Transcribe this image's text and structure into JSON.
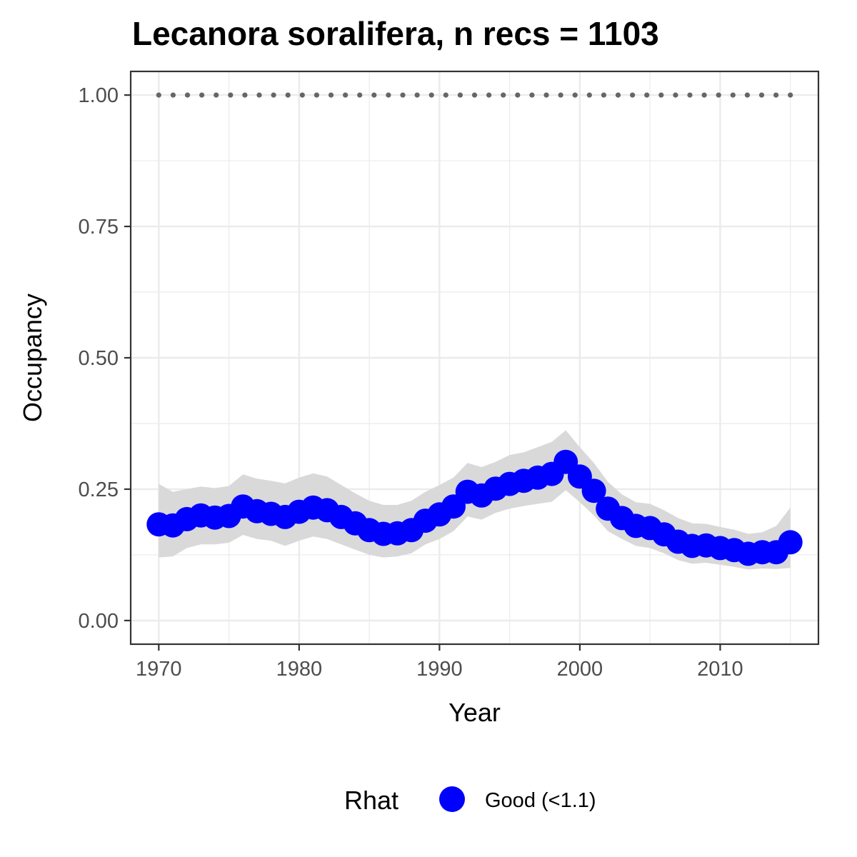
{
  "chart_data": {
    "type": "line",
    "title": "Lecanora soralifera, n recs = 1103",
    "xlabel": "Year",
    "ylabel": "Occupancy",
    "xlim": [
      1968,
      2017
    ],
    "ylim": [
      -0.045,
      1.045
    ],
    "x_ticks": [
      1970,
      1980,
      1990,
      2000,
      2010
    ],
    "x_tick_labels": [
      "1970",
      "1980",
      "1990",
      "2000",
      "2010"
    ],
    "y_ticks": [
      0,
      0.25,
      0.5,
      0.75,
      1.0
    ],
    "y_tick_labels": [
      "0.00",
      "0.25",
      "0.50",
      "0.75",
      "1.00"
    ],
    "grid": true,
    "legend": {
      "title": "Rhat",
      "position": "bottom",
      "entries": [
        {
          "label": "Good (<1.1)",
          "color": "#0000ff"
        }
      ]
    },
    "colors": {
      "points": "#0000ff",
      "ribbon": "#d9d9d9",
      "reference": "#666666",
      "grid": "#ebebeb",
      "border": "#333333"
    },
    "reference_line": {
      "y": 1.0,
      "style": "dotted"
    },
    "series": [
      {
        "name": "Good (<1.1)",
        "x": [
          1970,
          1971,
          1972,
          1973,
          1974,
          1975,
          1976,
          1977,
          1978,
          1979,
          1980,
          1981,
          1982,
          1983,
          1984,
          1985,
          1986,
          1987,
          1988,
          1989,
          1990,
          1991,
          1992,
          1993,
          1994,
          1995,
          1996,
          1997,
          1998,
          1999,
          2000,
          2001,
          2002,
          2003,
          2004,
          2005,
          2006,
          2007,
          2008,
          2009,
          2010,
          2011,
          2012,
          2013,
          2014,
          2015
        ],
        "y": [
          0.183,
          0.181,
          0.193,
          0.2,
          0.196,
          0.199,
          0.217,
          0.208,
          0.203,
          0.197,
          0.207,
          0.215,
          0.21,
          0.197,
          0.185,
          0.172,
          0.165,
          0.166,
          0.172,
          0.19,
          0.202,
          0.217,
          0.245,
          0.238,
          0.251,
          0.26,
          0.266,
          0.272,
          0.279,
          0.302,
          0.274,
          0.247,
          0.213,
          0.195,
          0.18,
          0.176,
          0.164,
          0.15,
          0.142,
          0.143,
          0.138,
          0.134,
          0.127,
          0.13,
          0.13,
          0.149
        ],
        "lower": [
          0.12,
          0.122,
          0.138,
          0.145,
          0.145,
          0.148,
          0.163,
          0.155,
          0.152,
          0.142,
          0.152,
          0.16,
          0.155,
          0.145,
          0.135,
          0.125,
          0.12,
          0.122,
          0.128,
          0.145,
          0.155,
          0.17,
          0.198,
          0.192,
          0.205,
          0.213,
          0.218,
          0.222,
          0.226,
          0.248,
          0.225,
          0.2,
          0.17,
          0.155,
          0.142,
          0.138,
          0.128,
          0.115,
          0.108,
          0.11,
          0.106,
          0.102,
          0.097,
          0.099,
          0.098,
          0.1
        ],
        "upper": [
          0.26,
          0.245,
          0.25,
          0.255,
          0.252,
          0.256,
          0.278,
          0.27,
          0.266,
          0.261,
          0.272,
          0.28,
          0.274,
          0.258,
          0.242,
          0.228,
          0.22,
          0.22,
          0.228,
          0.245,
          0.258,
          0.272,
          0.3,
          0.292,
          0.302,
          0.315,
          0.32,
          0.33,
          0.34,
          0.362,
          0.33,
          0.3,
          0.264,
          0.24,
          0.225,
          0.222,
          0.21,
          0.195,
          0.185,
          0.184,
          0.178,
          0.173,
          0.165,
          0.168,
          0.18,
          0.215
        ]
      }
    ]
  }
}
